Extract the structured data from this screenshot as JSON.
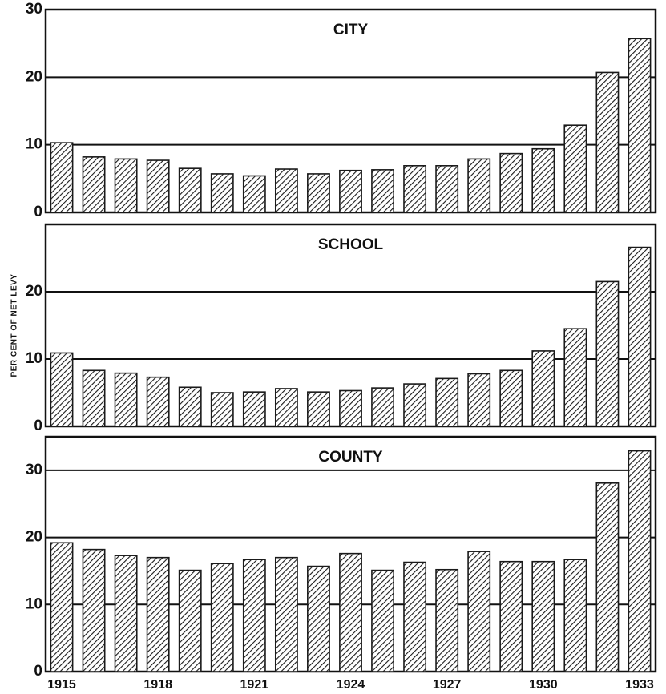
{
  "chart_data": [
    {
      "type": "bar",
      "title": "CITY",
      "color": "#1a1a1a",
      "grid": true,
      "values": [
        10.3,
        8.2,
        7.9,
        7.7,
        6.5,
        5.7,
        5.4,
        6.4,
        5.7,
        6.2,
        6.3,
        6.9,
        6.9,
        7.9,
        8.7,
        9.4,
        12.9,
        20.7,
        25.7
      ],
      "ylim": [
        0,
        30
      ],
      "yticks": [
        0,
        10,
        20,
        30
      ]
    },
    {
      "type": "bar",
      "title": "SCHOOL",
      "ylabel": "PER CENT OF NET LEVY",
      "color": "#1a1a1a",
      "grid": true,
      "values": [
        10.9,
        8.3,
        7.9,
        7.3,
        5.8,
        5.0,
        5.1,
        5.6,
        5.1,
        5.3,
        5.7,
        6.3,
        7.1,
        7.8,
        8.3,
        11.2,
        14.5,
        21.5,
        26.6
      ],
      "ylim": [
        0,
        30
      ],
      "yticks": [
        0,
        10,
        20
      ]
    },
    {
      "type": "bar",
      "title": "COUNTY",
      "color": "#1a1a1a",
      "grid": true,
      "categories": [
        "1915",
        null,
        null,
        "1918",
        null,
        null,
        "1921",
        null,
        null,
        "1924",
        null,
        null,
        "1927",
        null,
        null,
        "1930",
        null,
        null,
        "1933"
      ],
      "values": [
        19.2,
        18.2,
        17.3,
        17.0,
        15.1,
        16.1,
        16.7,
        17.0,
        15.7,
        17.6,
        15.1,
        16.3,
        15.2,
        17.9,
        16.4,
        16.4,
        16.7,
        28.1,
        32.9
      ],
      "ylim": [
        0,
        35
      ],
      "yticks": [
        0,
        10,
        20,
        30
      ]
    }
  ]
}
